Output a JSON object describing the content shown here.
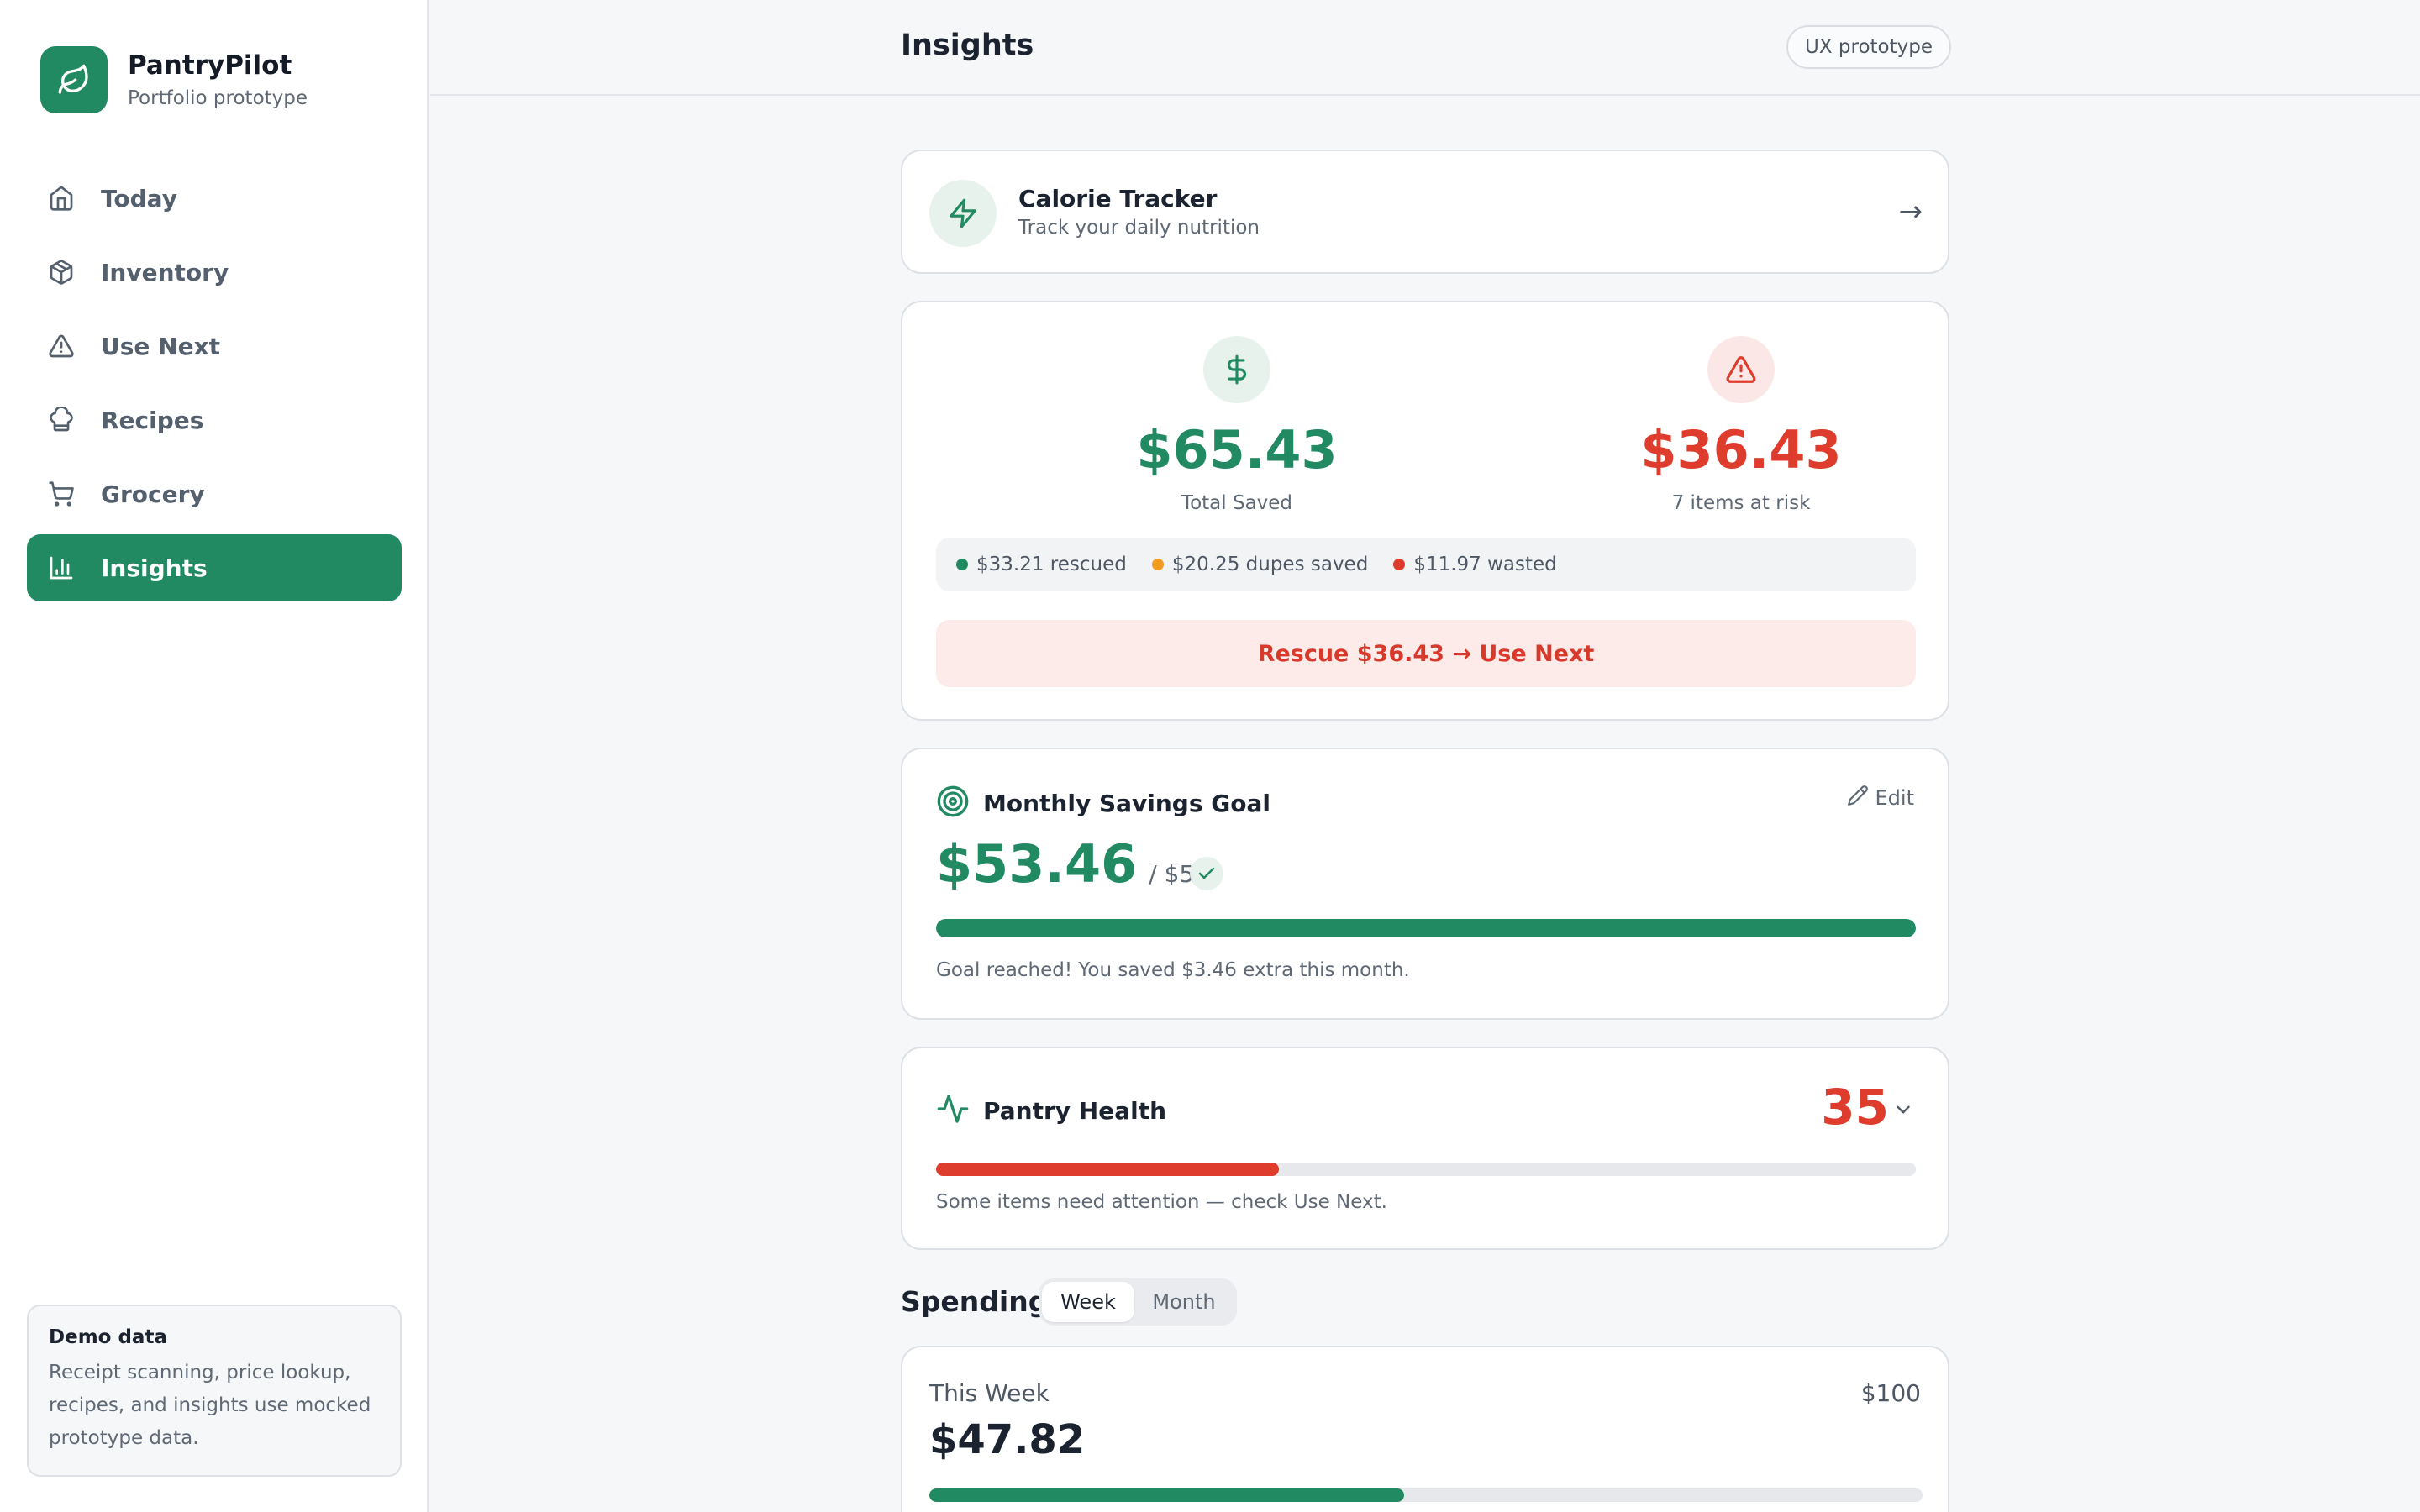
{
  "brand": {
    "name": "PantryPilot",
    "subtitle": "Portfolio prototype"
  },
  "nav": [
    {
      "label": "Today",
      "icon": "home-icon"
    },
    {
      "label": "Inventory",
      "icon": "box-icon"
    },
    {
      "label": "Use Next",
      "icon": "warning-icon"
    },
    {
      "label": "Recipes",
      "icon": "chef-hat-icon"
    },
    {
      "label": "Grocery",
      "icon": "cart-icon"
    },
    {
      "label": "Insights",
      "icon": "bar-chart-icon",
      "active": true
    }
  ],
  "demo": {
    "title": "Demo data",
    "body": "Receipt scanning, price lookup, recipes, and insights use mocked prototype data."
  },
  "header": {
    "title": "Insights",
    "badge": "UX prototype"
  },
  "calorie": {
    "title": "Calorie Tracker",
    "subtitle": "Track your daily nutrition",
    "arrow": "→"
  },
  "savings": {
    "total_saved": "$65.43",
    "total_saved_label": "Total Saved",
    "at_risk": "$36.43",
    "at_risk_label": "7 items at risk",
    "breakdown": [
      {
        "text": "$33.21 rescued",
        "color": "#218a62"
      },
      {
        "text": "$20.25 dupes saved",
        "color": "#f29b1f"
      },
      {
        "text": "$11.97 wasted",
        "color": "#de3c2d"
      }
    ],
    "rescue_button": "Rescue $36.43 → Use Next"
  },
  "goal": {
    "title": "Monthly Savings Goal",
    "edit_label": "Edit",
    "value": "$53.46",
    "target": "/ $50",
    "progress": 1.0,
    "message": "Goal reached! You saved $3.46 extra this month."
  },
  "health": {
    "title": "Pantry Health",
    "score": "35",
    "progress": 0.35,
    "message": "Some items need attention — check Use Next."
  },
  "spending": {
    "title": "Spending",
    "tabs": [
      "Week",
      "Month"
    ],
    "active_tab": "Week",
    "period_label": "This Week",
    "max_label": "$100",
    "value": "$47.82",
    "progress": 0.4782
  },
  "colors": {
    "accent": "#218a62",
    "danger": "#de3c2d",
    "warning": "#f29b1f"
  }
}
